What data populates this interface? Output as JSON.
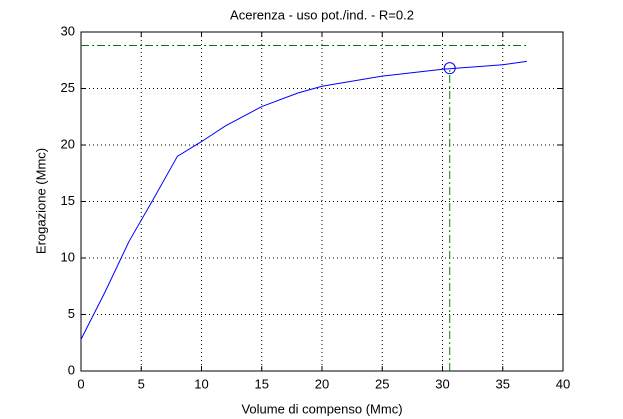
{
  "chart_data": {
    "type": "line",
    "title": "Acerenza  -  uso pot./ind.  -   R=0.2",
    "xlabel": "Volume di compenso (Mmc)",
    "ylabel": "Erogazione (Mmc)",
    "x": [
      0,
      2,
      4,
      6,
      8,
      10,
      12,
      15,
      18,
      20,
      25,
      30,
      35,
      37
    ],
    "series": [
      {
        "color": "#0000ff",
        "values": [
          2.8,
          7,
          11.5,
          15.2,
          19,
          20.3,
          21.7,
          23.4,
          24.6,
          25.2,
          26.1,
          26.7,
          27.1,
          27.4
        ]
      }
    ],
    "marker": {
      "x": 30.6,
      "y": 26.8,
      "color": "#0000ff"
    },
    "hline_y": 28.8,
    "guide_color": "#008000",
    "xlim": [
      0,
      40
    ],
    "xticks": [
      0,
      5,
      10,
      15,
      20,
      25,
      30,
      35,
      40
    ],
    "ylim": [
      0,
      30
    ],
    "yticks": [
      0,
      5,
      10,
      15,
      20,
      25,
      30
    ],
    "grid": true
  }
}
